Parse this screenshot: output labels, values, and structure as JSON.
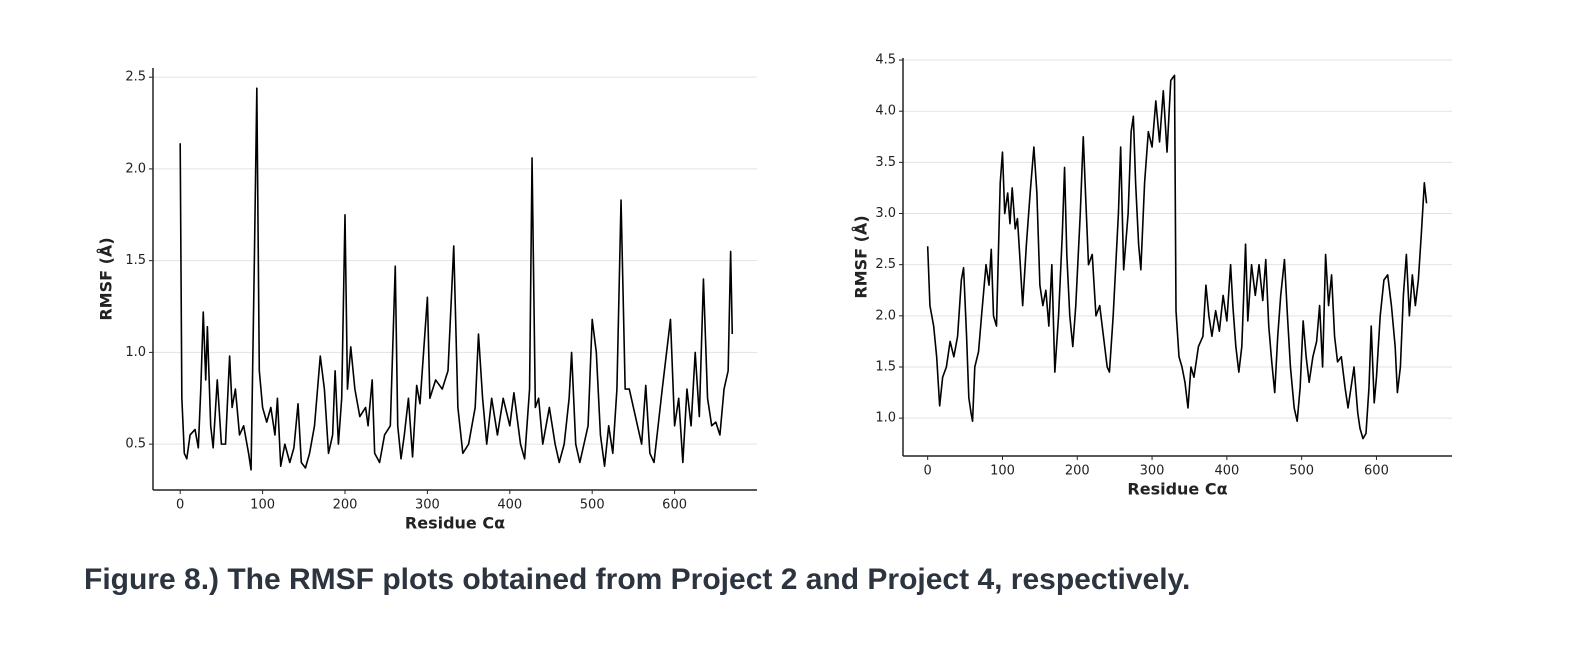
{
  "chart_data": [
    {
      "type": "line",
      "x_label": "Residue Cα",
      "y_label": "RMSF (Å)",
      "color": "#000000",
      "grid": true,
      "xlim": [
        -33,
        700
      ],
      "ylim": [
        0.25,
        2.55
      ],
      "xticks": [
        0,
        100,
        200,
        300,
        400,
        500,
        600
      ],
      "yticks": [
        0.5,
        {
          "value": 1,
          "label": "1.0"
        },
        1.5,
        {
          "value": 2,
          "label": "2.0"
        },
        2.5
      ],
      "x": [
        0,
        2,
        5,
        8,
        12,
        18,
        22,
        25,
        28,
        31,
        33,
        37,
        40,
        45,
        50,
        55,
        60,
        63,
        67,
        72,
        77,
        83,
        86,
        90,
        93,
        96,
        100,
        105,
        110,
        115,
        118,
        122,
        127,
        133,
        138,
        143,
        147,
        152,
        157,
        163,
        170,
        175,
        180,
        185,
        188,
        192,
        196,
        200,
        203,
        207,
        212,
        218,
        225,
        228,
        233,
        236,
        242,
        248,
        255,
        261,
        264,
        268,
        272,
        277,
        282,
        287,
        291,
        300,
        303,
        310,
        318,
        325,
        332,
        337,
        343,
        350,
        358,
        362,
        367,
        372,
        378,
        385,
        392,
        400,
        405,
        413,
        418,
        424,
        427,
        431,
        435,
        440,
        448,
        455,
        460,
        466,
        472,
        475,
        480,
        485,
        490,
        495,
        500,
        505,
        510,
        515,
        520,
        525,
        530,
        535,
        540,
        545,
        550,
        555,
        560,
        565,
        570,
        575,
        580,
        585,
        595,
        600,
        605,
        610,
        615,
        620,
        625,
        630,
        635,
        640,
        645,
        650,
        655,
        660,
        665,
        668,
        670
      ],
      "values": [
        2.14,
        0.75,
        0.45,
        0.42,
        0.55,
        0.58,
        0.48,
        0.8,
        1.22,
        0.85,
        1.14,
        0.6,
        0.48,
        0.85,
        0.5,
        0.5,
        0.98,
        0.7,
        0.8,
        0.55,
        0.6,
        0.45,
        0.36,
        1.5,
        2.44,
        0.9,
        0.7,
        0.62,
        0.7,
        0.55,
        0.75,
        0.38,
        0.5,
        0.4,
        0.48,
        0.72,
        0.4,
        0.37,
        0.45,
        0.6,
        0.98,
        0.8,
        0.45,
        0.55,
        0.9,
        0.5,
        0.75,
        1.75,
        0.8,
        1.03,
        0.8,
        0.65,
        0.7,
        0.6,
        0.85,
        0.45,
        0.4,
        0.55,
        0.6,
        1.47,
        0.6,
        0.42,
        0.55,
        0.75,
        0.43,
        0.82,
        0.72,
        1.3,
        0.75,
        0.85,
        0.8,
        0.9,
        1.58,
        0.7,
        0.45,
        0.5,
        0.7,
        1.1,
        0.75,
        0.5,
        0.75,
        0.55,
        0.75,
        0.6,
        0.78,
        0.5,
        0.42,
        0.8,
        2.06,
        0.7,
        0.75,
        0.5,
        0.7,
        0.5,
        0.4,
        0.5,
        0.75,
        1.0,
        0.5,
        0.4,
        0.5,
        0.6,
        1.18,
        1.0,
        0.55,
        0.38,
        0.6,
        0.45,
        0.8,
        1.83,
        0.8,
        0.8,
        0.7,
        0.6,
        0.5,
        0.82,
        0.45,
        0.4,
        0.6,
        0.8,
        1.18,
        0.6,
        0.75,
        0.4,
        0.8,
        0.6,
        1.0,
        0.65,
        1.4,
        0.75,
        0.6,
        0.62,
        0.55,
        0.8,
        0.9,
        1.55,
        1.1
      ]
    },
    {
      "type": "line",
      "x_label": "Residue Cα",
      "y_label": "RMSF (Å)",
      "color": "#000000",
      "grid": true,
      "xlim": [
        -33,
        701
      ],
      "ylim": [
        0.63,
        4.52
      ],
      "xticks": [
        0,
        100,
        200,
        300,
        400,
        500,
        600
      ],
      "yticks": [
        {
          "value": 1,
          "label": "1.0"
        },
        1.5,
        {
          "value": 2,
          "label": "2.0"
        },
        2.5,
        {
          "value": 3,
          "label": "3.0"
        },
        3.5,
        {
          "value": 4,
          "label": "4.0"
        },
        4.5
      ],
      "x": [
        0,
        3,
        8,
        12,
        16,
        20,
        25,
        30,
        35,
        40,
        45,
        48,
        52,
        55,
        58,
        60,
        63,
        68,
        72,
        78,
        82,
        85,
        88,
        92,
        97,
        100,
        103,
        107,
        110,
        113,
        117,
        120,
        123,
        127,
        132,
        137,
        142,
        146,
        150,
        154,
        158,
        162,
        166,
        170,
        175,
        180,
        183,
        186,
        190,
        194,
        198,
        204,
        208,
        211,
        215,
        220,
        225,
        230,
        235,
        240,
        243,
        248,
        255,
        258,
        262,
        268,
        272,
        275,
        278,
        282,
        285,
        290,
        295,
        300,
        305,
        310,
        315,
        320,
        325,
        330,
        332,
        336,
        340,
        344,
        348,
        352,
        356,
        362,
        368,
        372,
        376,
        380,
        385,
        390,
        395,
        400,
        405,
        408,
        412,
        416,
        420,
        425,
        428,
        433,
        438,
        443,
        448,
        452,
        456,
        460,
        464,
        468,
        472,
        477,
        481,
        485,
        490,
        494,
        498,
        502,
        506,
        510,
        515,
        520,
        524,
        528,
        532,
        536,
        540,
        544,
        548,
        553,
        558,
        562,
        566,
        570,
        575,
        578,
        582,
        586,
        590,
        593,
        597,
        600,
        605,
        610,
        615,
        620,
        625,
        628,
        632,
        636,
        640,
        644,
        648,
        652,
        656,
        660,
        664,
        667
      ],
      "values": [
        2.68,
        2.1,
        1.9,
        1.6,
        1.12,
        1.4,
        1.5,
        1.75,
        1.6,
        1.8,
        2.35,
        2.47,
        1.8,
        1.2,
        1.05,
        0.97,
        1.5,
        1.65,
        2.0,
        2.5,
        2.3,
        2.65,
        2.0,
        1.9,
        3.3,
        3.6,
        3.0,
        3.2,
        2.9,
        3.25,
        2.85,
        2.95,
        2.6,
        2.1,
        2.7,
        3.2,
        3.65,
        3.2,
        2.3,
        2.1,
        2.25,
        1.9,
        2.5,
        1.45,
        2.0,
        2.8,
        3.45,
        2.6,
        2.0,
        1.7,
        2.1,
        3.0,
        3.75,
        3.2,
        2.5,
        2.6,
        2.0,
        2.1,
        1.8,
        1.5,
        1.45,
        2.0,
        3.0,
        3.65,
        2.45,
        3.0,
        3.8,
        3.95,
        3.3,
        2.7,
        2.45,
        3.3,
        3.8,
        3.65,
        4.1,
        3.7,
        4.2,
        3.6,
        4.3,
        4.35,
        2.05,
        1.6,
        1.5,
        1.35,
        1.1,
        1.5,
        1.4,
        1.7,
        1.8,
        2.3,
        2.0,
        1.8,
        2.05,
        1.85,
        2.2,
        1.95,
        2.5,
        2.1,
        1.7,
        1.45,
        1.7,
        2.7,
        1.95,
        2.5,
        2.2,
        2.5,
        2.15,
        2.55,
        1.9,
        1.55,
        1.25,
        1.8,
        2.2,
        2.55,
        2.0,
        1.5,
        1.1,
        0.97,
        1.3,
        1.95,
        1.6,
        1.35,
        1.6,
        1.75,
        2.1,
        1.5,
        2.6,
        2.1,
        2.4,
        1.8,
        1.55,
        1.6,
        1.3,
        1.1,
        1.3,
        1.5,
        1.05,
        0.9,
        0.8,
        0.85,
        1.3,
        1.9,
        1.15,
        1.4,
        2.0,
        2.35,
        2.4,
        2.1,
        1.7,
        1.25,
        1.5,
        2.2,
        2.6,
        2.0,
        2.4,
        2.1,
        2.35,
        2.8,
        3.3,
        3.1
      ]
    }
  ],
  "caption": "Figure 8.) The RMSF plots obtained from Project 2 and Project 4, respectively."
}
